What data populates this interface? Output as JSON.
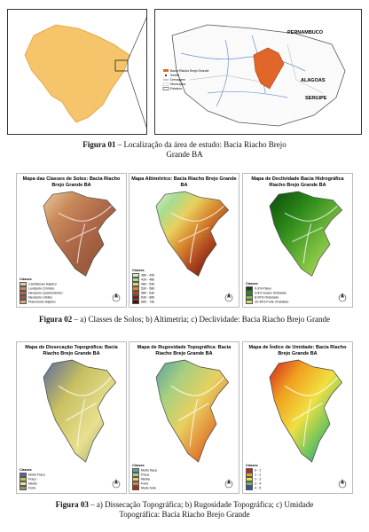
{
  "figure1": {
    "map_labels": [
      "PERNAMBUCO",
      "ALAGOAS",
      "SERGIPE"
    ],
    "legend": [
      "Bacia Riacho Brejo Grande",
      "Sedes",
      "Drenagem",
      "Municípios",
      "Estados"
    ],
    "caption": {
      "label": "Figura 01",
      "text": "– Localização da área de estudo: Bacia Riacho Brejo Grande BA"
    }
  },
  "figure2": {
    "maps": [
      {
        "title": "Mapa das Classes de Solos: Bacia Riacho Brejo Grande BA",
        "legend_title": "Classes",
        "legend": [
          "Cambissolo Háplico",
          "Luvissolo Crômico",
          "Neossolo Quartzarênico",
          "Neossolo Litólico",
          "Planossolo Háplico"
        ],
        "colors": [
          "#e8c9a0",
          "#c98a5a",
          "#b06a4a",
          "#9a5a3c",
          "#d9a77a"
        ]
      },
      {
        "title": "Mapa Altimétrico: Bacia Riacho Brejo Grande BA",
        "legend_title": "Classes",
        "legend": [
          "380 - 430",
          "430 - 480",
          "480 - 530",
          "530 - 580",
          "580 - 630",
          "630 - 680",
          "680 - 730"
        ],
        "colors": [
          "#d8f0d0",
          "#a8dc90",
          "#e8d060",
          "#d88a30",
          "#b04a20",
          "#7a2010",
          "#4a1008"
        ]
      },
      {
        "title": "Mapa de Declividade Bacia Hidrográfica Riacho Brejo Grande BA",
        "legend_title": "Classes",
        "legend": [
          "0-3% Plano",
          "3-8% Suave Ondulado",
          "8-20% Ondulado",
          "20-45% Forte Ondulado"
        ],
        "colors": [
          "#0a4a0a",
          "#2e8a1a",
          "#7cc040",
          "#c8e070"
        ]
      }
    ],
    "caption": {
      "label": "Figura 02",
      "text": "– a) Classes de Solos; b) Altimetria; c) Declividade: Bacia Riacho Brejo Grande"
    }
  },
  "figure3": {
    "maps": [
      {
        "title": "Mapa de Dissecação Topográfica: Bacia Riacho Brejo Grande BA",
        "legend_title": "Classes",
        "legend": [
          "Muito Fraco",
          "Fraco",
          "Médio",
          "Forte"
        ],
        "colors": [
          "#5a6aa0",
          "#c8c060",
          "#e8e090",
          "#8a9a60"
        ]
      },
      {
        "title": "Mapa de Rugosidade Topográfica: Bacia Riacho Brejo Grande BA",
        "legend_title": "Classes",
        "legend": [
          "Muito fraca",
          "Fraca",
          "Média",
          "Forte",
          "Muito forte"
        ],
        "colors": [
          "#5aa0a0",
          "#a8d080",
          "#e8d060",
          "#e08030",
          "#c02010"
        ]
      },
      {
        "title": "Mapa de Índice de Umidade: Bacia Riacho Brejo Grande BA",
        "legend_title": "Classes",
        "legend": [
          "0 - 1",
          "1 - 2",
          "2 - 3",
          "3 - 4",
          "4 - 5"
        ],
        "colors": [
          "#d02020",
          "#f0a020",
          "#f0e040",
          "#60c060",
          "#3050c0"
        ]
      }
    ],
    "caption": {
      "label": "Figura 03",
      "text": "– a) Dissecação Topográfica; b) Rugosidade Topográfica; c) Umidade Topográfica: Bacia Riacho Brejo Grande"
    }
  }
}
